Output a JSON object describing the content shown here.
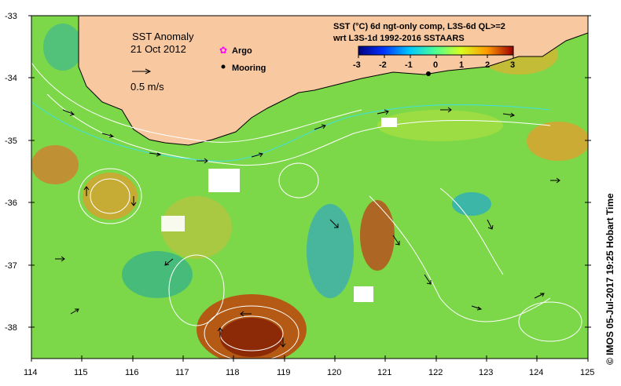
{
  "map": {
    "title": "SST Anomaly",
    "date": "21 Oct 2012",
    "scale_label": "0.5 m/s",
    "product_line1": "SST (°C) 6d ngt-only comp, L3S-6d QL>=2",
    "product_line2": "wrt L3S-1d 1992-2016 SSTAARS",
    "credit": "©  IMOS 05-Jul-2017 19:25 Hobart Time"
  },
  "legend": {
    "argo_label": "Argo",
    "mooring_label": "Mooring",
    "argo_color": "#ff00ff",
    "mooring_color": "#000000"
  },
  "colorbar": {
    "ticks": [
      "-3",
      "-2",
      "-1",
      "0",
      "1",
      "2",
      "3"
    ],
    "colors": [
      "#00007f",
      "#0030ff",
      "#00c8ff",
      "#50ff90",
      "#d8ff20",
      "#ff9a00",
      "#a00000"
    ]
  },
  "axes": {
    "x_ticks": [
      "114",
      "115",
      "116",
      "117",
      "118",
      "119",
      "120",
      "121",
      "122",
      "123",
      "124",
      "125"
    ],
    "y_ticks": [
      "-33",
      "-34",
      "-35",
      "-36",
      "-37",
      "-38"
    ],
    "lon_range": [
      114,
      125
    ],
    "lat_range": [
      -38.5,
      -33
    ]
  },
  "colors": {
    "land": "#f8c8a0",
    "ocean_base": "#7cd848",
    "warm": "#c86420",
    "cool": "#20a8d0"
  }
}
